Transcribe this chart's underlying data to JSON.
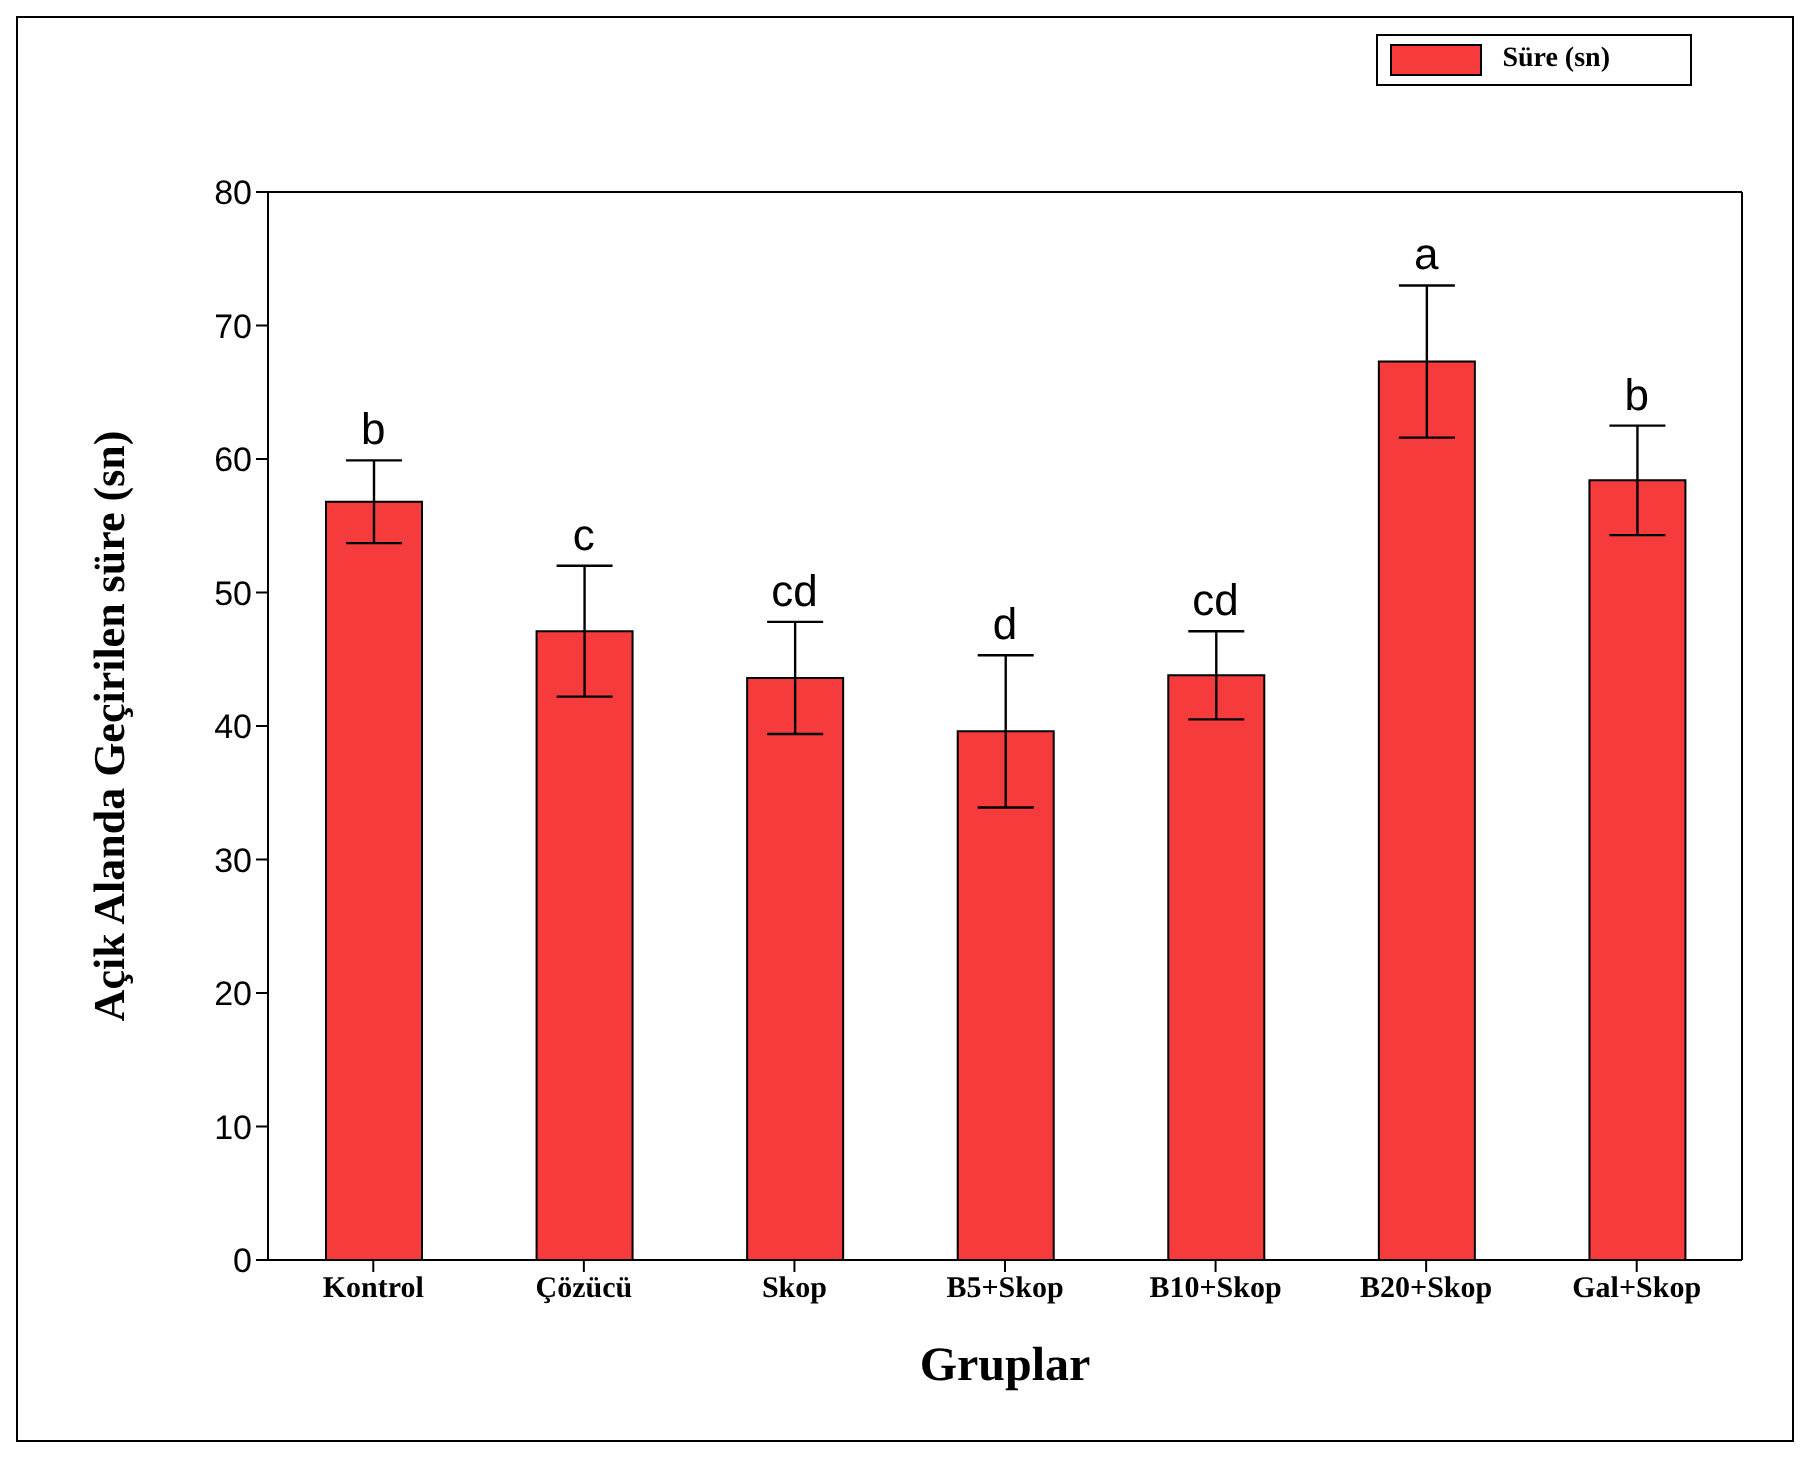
{
  "chart_data": {
    "type": "bar",
    "xlabel": "Gruplar",
    "ylabel": "Açik Alanda Geçirilen süre (sn)",
    "categories": [
      "Kontrol",
      "Çözücü",
      "Skop",
      "B5+Skop",
      "B10+Skop",
      "B20+Skop",
      "Gal+Skop"
    ],
    "series": [
      {
        "name": "Süre (sn)",
        "color": "#f53b3b",
        "values": [
          56.8,
          47.1,
          43.6,
          39.6,
          43.8,
          67.3,
          58.4
        ],
        "errors": [
          3.1,
          4.9,
          4.2,
          5.7,
          3.3,
          5.7,
          4.1
        ]
      }
    ],
    "ylim": [
      0,
      80
    ],
    "yticks": [
      0,
      10,
      20,
      30,
      40,
      50,
      60,
      70,
      80
    ],
    "grid": false,
    "legend": "top right",
    "annotations": [
      {
        "text": "b",
        "x": "Kontrol",
        "y": 59.9
      },
      {
        "text": "c",
        "x": "Çözücü",
        "y": 52.0
      },
      {
        "text": "cd",
        "x": "Skop",
        "y": 47.8
      },
      {
        "text": "d",
        "x": "B5+Skop",
        "y": 45.3
      },
      {
        "text": "cd",
        "x": "B10+Skop",
        "y": 47.1
      },
      {
        "text": "a",
        "x": "B20+Skop",
        "y": 73.0
      },
      {
        "text": "b",
        "x": "Gal+Skop",
        "y": 62.5
      }
    ]
  }
}
